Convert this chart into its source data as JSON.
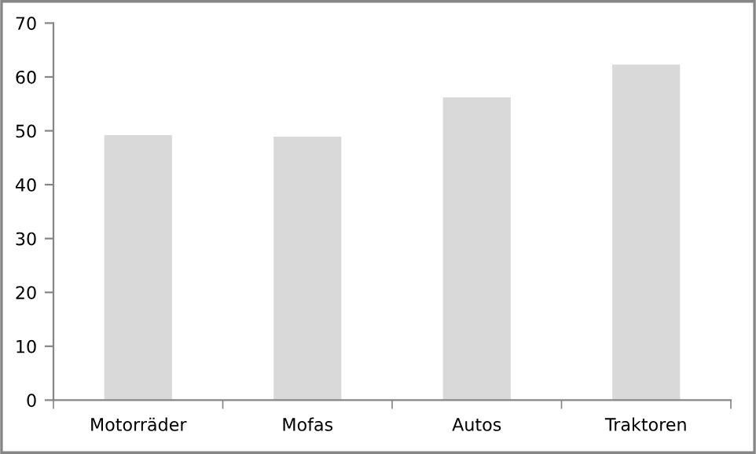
{
  "chart_data": {
    "type": "bar",
    "categories": [
      "Motorräder",
      "Mofas",
      "Autos",
      "Traktoren"
    ],
    "values": [
      49.2,
      48.9,
      56.2,
      62.3
    ],
    "color": "#d9d9d9",
    "ylim": [
      0,
      70
    ],
    "yticks": [
      0,
      10,
      20,
      30,
      40,
      50,
      60,
      70
    ],
    "grid": false,
    "legend": false
  }
}
